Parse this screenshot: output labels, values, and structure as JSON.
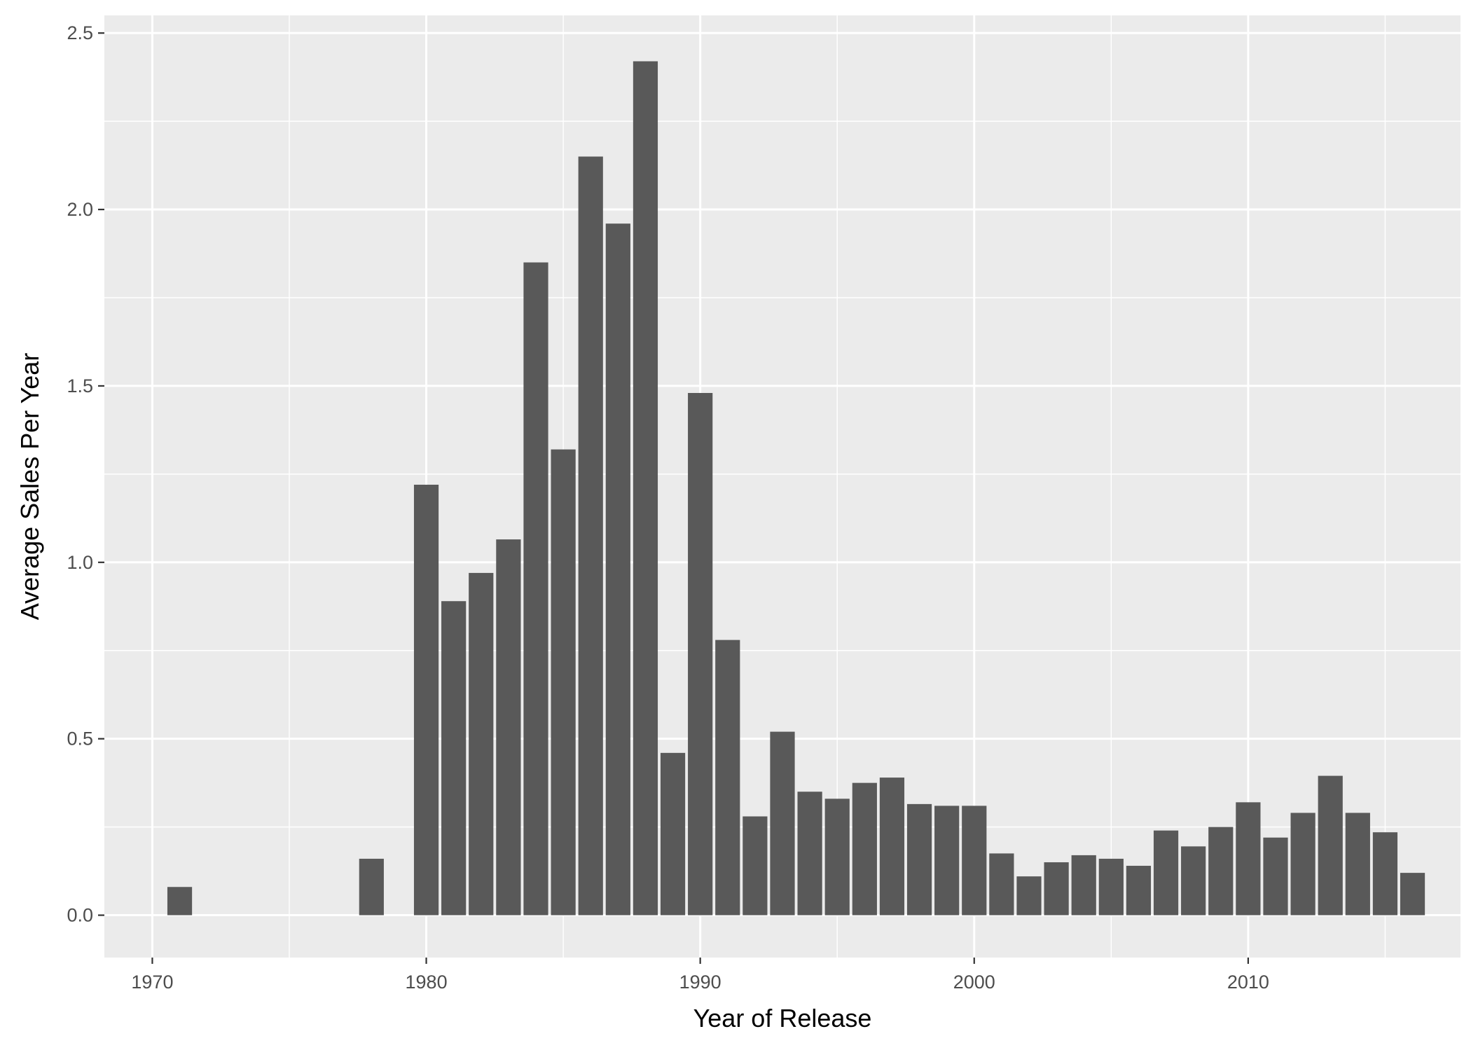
{
  "chart_data": {
    "type": "bar",
    "title": "",
    "xlabel": "Year of Release",
    "ylabel": "Average Sales Per Year",
    "xlim": [
      1968.25,
      2017.75
    ],
    "ylim": [
      -0.12,
      2.55
    ],
    "x_ticks": [
      1970,
      1980,
      1990,
      2000,
      2010
    ],
    "x_minor": [
      1975,
      1985,
      1995,
      2005,
      2015
    ],
    "y_ticks": [
      0.0,
      0.5,
      1.0,
      1.5,
      2.0,
      2.5
    ],
    "y_tick_labels": [
      "0.0",
      "0.5",
      "1.0",
      "1.5",
      "2.0",
      "2.5"
    ],
    "y_minor": [
      0.25,
      0.75,
      1.25,
      1.75,
      2.25
    ],
    "bar_width": 0.9,
    "grid": true,
    "colors": {
      "bar": "#595959",
      "panel": "#ebebeb",
      "grid": "#ffffff",
      "tick": "#333333"
    },
    "x": [
      1971,
      1978,
      1980,
      1981,
      1982,
      1983,
      1984,
      1985,
      1986,
      1987,
      1988,
      1989,
      1990,
      1991,
      1992,
      1993,
      1994,
      1995,
      1996,
      1997,
      1998,
      1999,
      2000,
      2001,
      2002,
      2003,
      2004,
      2005,
      2006,
      2007,
      2008,
      2009,
      2010,
      2011,
      2012,
      2013,
      2014,
      2015,
      2016
    ],
    "values": [
      0.08,
      0.16,
      1.22,
      0.89,
      0.97,
      1.065,
      1.85,
      1.32,
      2.15,
      1.96,
      2.42,
      0.46,
      1.48,
      0.78,
      0.28,
      0.52,
      0.35,
      0.33,
      0.375,
      0.39,
      0.315,
      0.31,
      0.31,
      0.175,
      0.11,
      0.15,
      0.17,
      0.16,
      0.14,
      0.24,
      0.195,
      0.25,
      0.32,
      0.22,
      0.29,
      0.395,
      0.29,
      0.235,
      0.12
    ]
  }
}
